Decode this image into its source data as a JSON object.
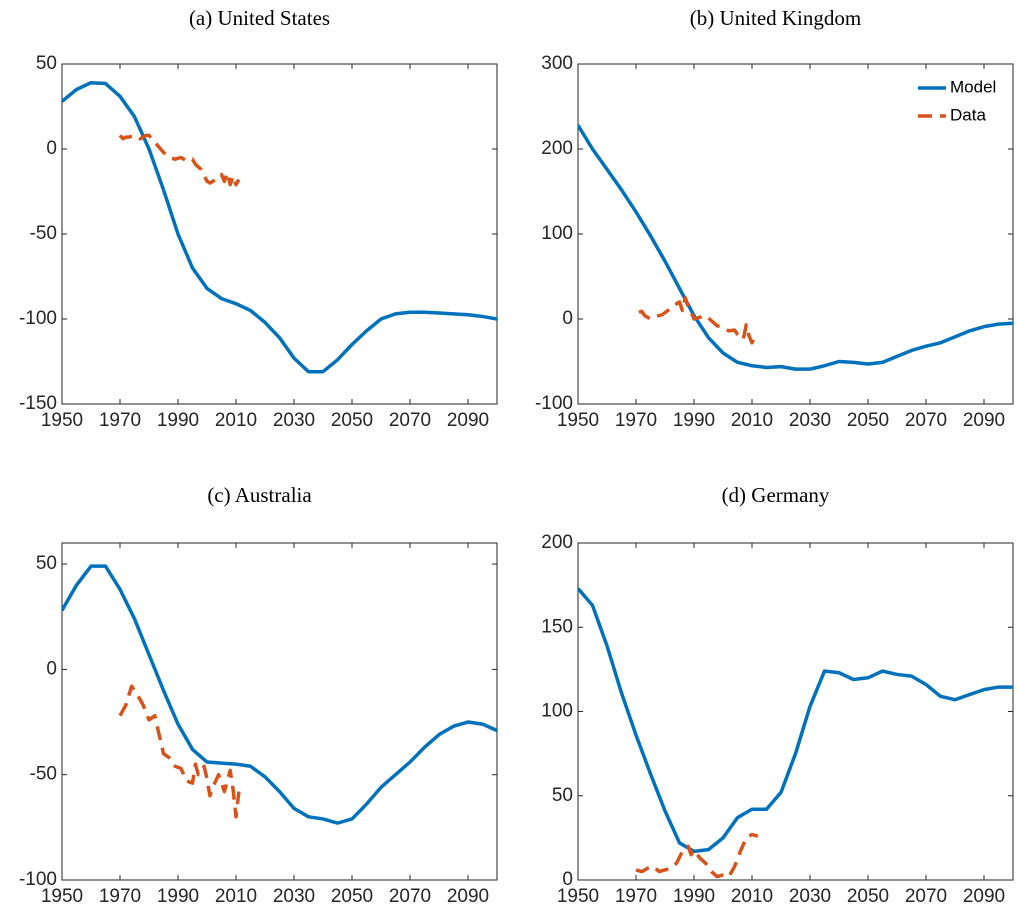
{
  "chart_data": [
    {
      "type": "line",
      "title": "(a) United States",
      "xlim": [
        1950,
        2100
      ],
      "xticks": [
        1950,
        1970,
        1990,
        2010,
        2030,
        2050,
        2070,
        2090
      ],
      "ylim": [
        -150,
        50
      ],
      "yticks": [
        -150,
        -100,
        -50,
        0,
        50
      ],
      "series": [
        {
          "color": "#0072BD",
          "line_style": "solid",
          "x": [
            1950,
            1955,
            1960,
            1965,
            1970,
            1975,
            1980,
            1985,
            1990,
            1995,
            2000,
            2005,
            2010,
            2015,
            2020,
            2025,
            2030,
            2035,
            2040,
            2045,
            2050,
            2055,
            2060,
            2065,
            2070,
            2075,
            2080,
            2085,
            2090,
            2095,
            2100
          ],
          "values": [
            28,
            35,
            39,
            38.5,
            31,
            19,
            0,
            -24,
            -50,
            -70,
            -82,
            -88,
            -91,
            -95,
            -102,
            -111,
            -123,
            -131,
            -131,
            -124,
            -115,
            -107,
            -100,
            -97,
            -96,
            -96,
            -96.5,
            -97,
            -97.5,
            -98.5,
            -100
          ]
        },
        {
          "color": "#D95319",
          "line_style": "dashed",
          "x": [
            1970,
            1971,
            1972,
            1973,
            1975,
            1977,
            1979,
            1980,
            1981,
            1983,
            1985,
            1987,
            1989,
            1991,
            1993,
            1995,
            1996,
            1998,
            2000,
            2001,
            2003,
            2005,
            2006,
            2007,
            2008,
            2009,
            2010,
            2011
          ],
          "values": [
            8,
            6,
            7,
            7,
            8,
            6,
            8,
            8,
            6,
            2,
            -2,
            -5,
            -6,
            -5,
            -7,
            -6,
            -9,
            -12,
            -19,
            -20,
            -18,
            -15,
            -19,
            -14,
            -21,
            -16,
            -21,
            -18
          ]
        }
      ]
    },
    {
      "type": "line",
      "title": "(b) United Kingdom",
      "xlim": [
        1950,
        2100
      ],
      "xticks": [
        1950,
        1970,
        1990,
        2010,
        2030,
        2050,
        2070,
        2090
      ],
      "ylim": [
        -100,
        300
      ],
      "yticks": [
        -100,
        0,
        100,
        200,
        300
      ],
      "legend": "upper right",
      "series": [
        {
          "name": "Model",
          "color": "#0072BD",
          "line_style": "solid",
          "x": [
            1950,
            1955,
            1960,
            1965,
            1970,
            1975,
            1980,
            1985,
            1990,
            1995,
            2000,
            2005,
            2010,
            2015,
            2020,
            2025,
            2030,
            2035,
            2040,
            2045,
            2050,
            2055,
            2060,
            2065,
            2070,
            2075,
            2080,
            2085,
            2090,
            2095,
            2100
          ],
          "values": [
            228,
            200,
            176,
            152,
            126,
            98,
            68,
            36,
            4,
            -22,
            -40,
            -51,
            -55,
            -57,
            -56,
            -59,
            -59,
            -55,
            -50,
            -51,
            -53,
            -51,
            -44,
            -37,
            -32,
            -28,
            -21,
            -14,
            -9,
            -6,
            -5
          ]
        },
        {
          "name": "Data",
          "color": "#D95319",
          "line_style": "dashed",
          "x": [
            1971,
            1972,
            1973,
            1975,
            1977,
            1979,
            1981,
            1983,
            1985,
            1986,
            1987,
            1988,
            1989,
            1990,
            1992,
            1994,
            1996,
            1998,
            2000,
            2002,
            2004,
            2005,
            2007,
            2008,
            2009,
            2010,
            2011
          ],
          "values": [
            8,
            9,
            4,
            0,
            3,
            5,
            10,
            16,
            20,
            10,
            25,
            14,
            8,
            0,
            2,
            4,
            -2,
            -8,
            -10,
            -14,
            -13,
            -18,
            -24,
            -7,
            -20,
            -28,
            -20
          ]
        }
      ]
    },
    {
      "type": "line",
      "title": "(c) Australia",
      "xlim": [
        1950,
        2100
      ],
      "xticks": [
        1950,
        1970,
        1990,
        2010,
        2030,
        2050,
        2070,
        2090
      ],
      "ylim": [
        -100,
        60
      ],
      "yticks": [
        -100,
        -50,
        0,
        50
      ],
      "series": [
        {
          "color": "#0072BD",
          "line_style": "solid",
          "x": [
            1950,
            1955,
            1960,
            1965,
            1970,
            1975,
            1980,
            1985,
            1990,
            1995,
            2000,
            2005,
            2010,
            2015,
            2020,
            2025,
            2030,
            2035,
            2040,
            2045,
            2050,
            2055,
            2060,
            2065,
            2070,
            2075,
            2080,
            2085,
            2090,
            2095,
            2100
          ],
          "values": [
            28,
            40,
            49,
            49,
            38,
            24,
            7,
            -10,
            -26,
            -38,
            -44,
            -44.5,
            -45,
            -46,
            -51,
            -58,
            -66,
            -70,
            -71,
            -73,
            -71,
            -64,
            -56,
            -50,
            -44,
            -37,
            -31,
            -27,
            -25,
            -26,
            -29
          ]
        },
        {
          "color": "#D95319",
          "line_style": "dashed",
          "x": [
            1970,
            1972,
            1974,
            1976,
            1978,
            1980,
            1982,
            1983,
            1985,
            1987,
            1989,
            1991,
            1993,
            1995,
            1996,
            1997,
            1999,
            2000,
            2001,
            2002,
            2004,
            2006,
            2008,
            2009,
            2010,
            2011
          ],
          "values": [
            -22,
            -17,
            -8,
            -12,
            -17,
            -24,
            -22,
            -28,
            -40,
            -42,
            -46,
            -47,
            -53,
            -54,
            -45,
            -50,
            -46,
            -52,
            -60,
            -56,
            -50,
            -58,
            -48,
            -57,
            -70,
            -58
          ]
        }
      ]
    },
    {
      "type": "line",
      "title": "(d) Germany",
      "xlim": [
        1950,
        2100
      ],
      "xticks": [
        1950,
        1970,
        1990,
        2010,
        2030,
        2050,
        2070,
        2090
      ],
      "ylim": [
        0,
        200
      ],
      "yticks": [
        0,
        50,
        100,
        150,
        200
      ],
      "series": [
        {
          "color": "#0072BD",
          "line_style": "solid",
          "x": [
            1950,
            1955,
            1960,
            1965,
            1970,
            1975,
            1980,
            1985,
            1990,
            1995,
            2000,
            2005,
            2010,
            2015,
            2020,
            2025,
            2030,
            2035,
            2040,
            2045,
            2050,
            2055,
            2060,
            2065,
            2070,
            2075,
            2080,
            2085,
            2090,
            2095,
            2100
          ],
          "values": [
            173,
            163,
            139,
            111,
            86,
            63,
            41,
            22,
            17,
            18,
            25,
            37,
            42,
            42,
            52,
            75,
            103,
            124,
            123,
            119,
            120,
            124,
            122,
            121,
            116,
            109,
            107,
            110,
            113,
            114.5,
            114.5
          ]
        },
        {
          "color": "#D95319",
          "line_style": "dashed",
          "x": [
            1970,
            1972,
            1974,
            1976,
            1978,
            1980,
            1982,
            1984,
            1986,
            1988,
            1989,
            1990,
            1992,
            1994,
            1996,
            1998,
            2000,
            2002,
            2004,
            2006,
            2008,
            2010,
            2012
          ],
          "values": [
            6,
            5,
            7,
            8,
            5,
            6,
            7,
            10,
            17,
            20,
            15,
            18,
            13,
            10,
            5,
            2,
            3,
            2,
            8,
            17,
            25,
            27,
            26
          ]
        }
      ]
    }
  ]
}
